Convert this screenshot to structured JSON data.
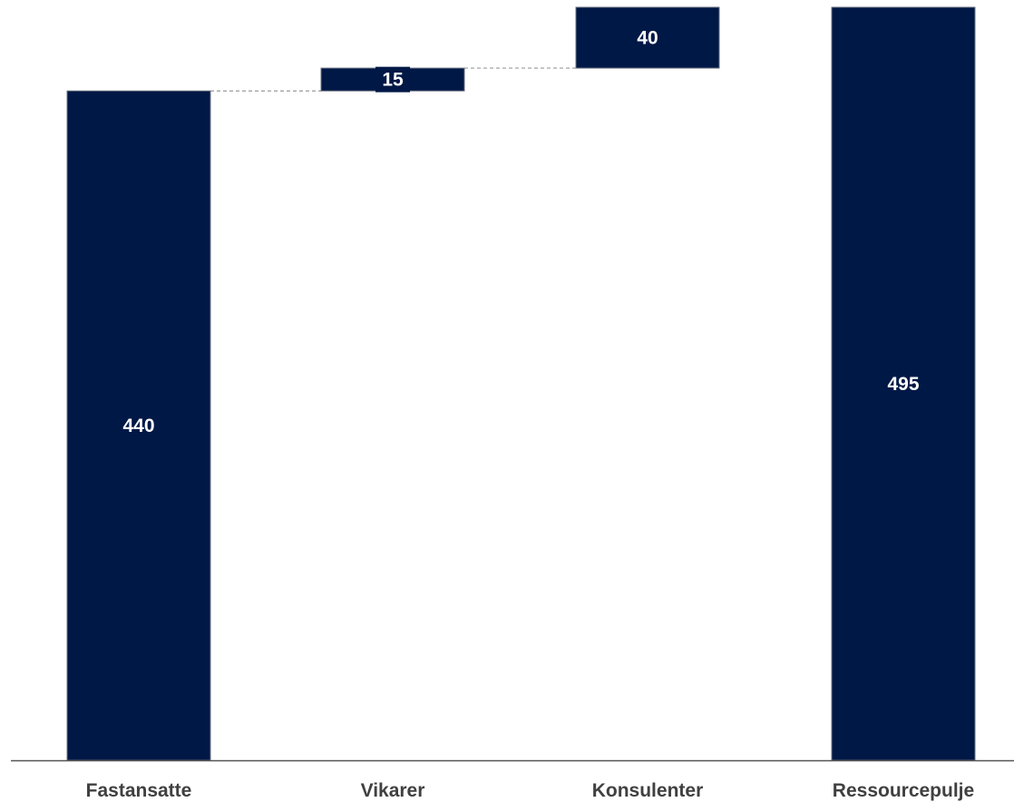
{
  "chart_data": {
    "type": "waterfall",
    "categories": [
      "Fastansatte",
      "Vikarer",
      "Konsulenter",
      "Ressourcepulje"
    ],
    "values": [
      440,
      15,
      40,
      495
    ],
    "kinds": [
      "total",
      "increment",
      "increment",
      "total"
    ],
    "data_labels": [
      "440",
      "15",
      "40",
      "495"
    ],
    "ylim": [
      0,
      495
    ],
    "grid": false,
    "legend": "none",
    "colors": {
      "bar": "#001846",
      "bar_border": "#6b7280",
      "label": "#ffffff",
      "category_text": "#404040",
      "axis": "#555555",
      "connector": "#9a9a9a"
    }
  }
}
